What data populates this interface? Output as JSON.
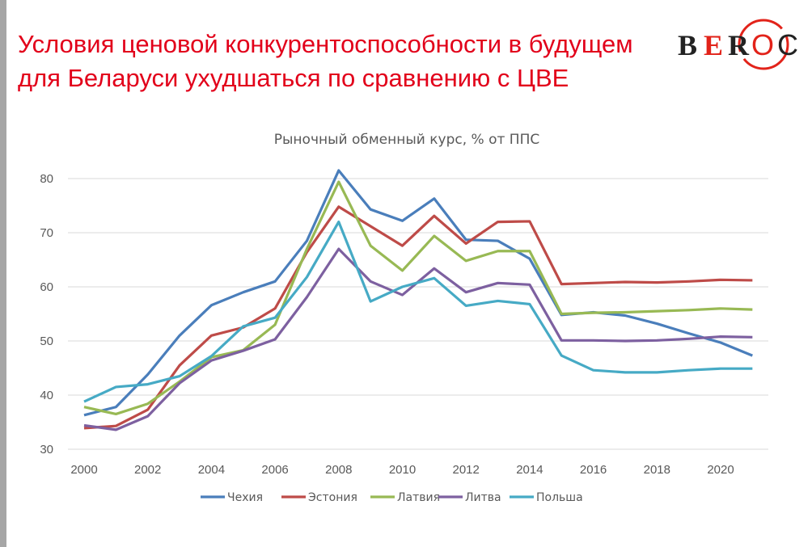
{
  "slide": {
    "title_line1": "Условия ценовой конкурентоспособности в будущем",
    "title_line2": "для Беларуси ухудшаться по сравнению с ЦВЕ",
    "logo_text": "BEROC"
  },
  "chart_data": {
    "type": "line",
    "title": "Рыночный обменный курс, % от ППС",
    "xlabel": "",
    "ylabel": "",
    "x": [
      2000,
      2001,
      2002,
      2003,
      2004,
      2005,
      2006,
      2007,
      2008,
      2009,
      2010,
      2011,
      2012,
      2013,
      2014,
      2015,
      2016,
      2017,
      2018,
      2019,
      2020,
      2021
    ],
    "xticks": [
      2000,
      2002,
      2004,
      2006,
      2008,
      2010,
      2012,
      2014,
      2016,
      2018,
      2020
    ],
    "yticks": [
      30,
      40,
      50,
      60,
      70,
      80
    ],
    "ylim": [
      30,
      80
    ],
    "grid": true,
    "legend_position": "bottom",
    "series": [
      {
        "name": "Чехия",
        "color": "#4a7ebb",
        "values": [
          36.3,
          37.8,
          43.8,
          51.0,
          56.6,
          59.0,
          61.0,
          68.5,
          81.5,
          74.3,
          72.2,
          76.3,
          68.7,
          68.5,
          65.2,
          54.8,
          55.3,
          54.7,
          53.2,
          51.4,
          49.7,
          47.3
        ]
      },
      {
        "name": "Эстония",
        "color": "#be4b48",
        "values": [
          33.9,
          34.3,
          37.3,
          45.5,
          51.0,
          52.5,
          56.0,
          66.4,
          74.8,
          71.2,
          67.6,
          73.1,
          68.0,
          72.0,
          72.1,
          60.5,
          60.7,
          60.9,
          60.8,
          61.0,
          61.3,
          61.2
        ]
      },
      {
        "name": "Латвия",
        "color": "#98b954",
        "values": [
          37.8,
          36.5,
          38.4,
          42.5,
          47.0,
          48.3,
          53.0,
          67.0,
          79.4,
          67.6,
          63.0,
          69.4,
          64.8,
          66.6,
          66.6,
          55.0,
          55.2,
          55.3,
          55.5,
          55.7,
          56.0,
          55.8
        ]
      },
      {
        "name": "Литва",
        "color": "#7d60a0",
        "values": [
          34.4,
          33.6,
          36.1,
          42.2,
          46.4,
          48.2,
          50.3,
          58.1,
          67.0,
          61.0,
          58.5,
          63.4,
          59.0,
          60.7,
          60.4,
          50.1,
          50.1,
          50.0,
          50.1,
          50.4,
          50.8,
          50.7
        ]
      },
      {
        "name": "Польша",
        "color": "#46aac5",
        "values": [
          38.8,
          41.5,
          42.0,
          43.5,
          47.2,
          52.7,
          54.3,
          61.8,
          72.0,
          57.3,
          60.0,
          61.6,
          56.5,
          57.4,
          56.8,
          47.3,
          44.6,
          44.2,
          44.2,
          44.6,
          44.9,
          44.9
        ]
      }
    ]
  }
}
